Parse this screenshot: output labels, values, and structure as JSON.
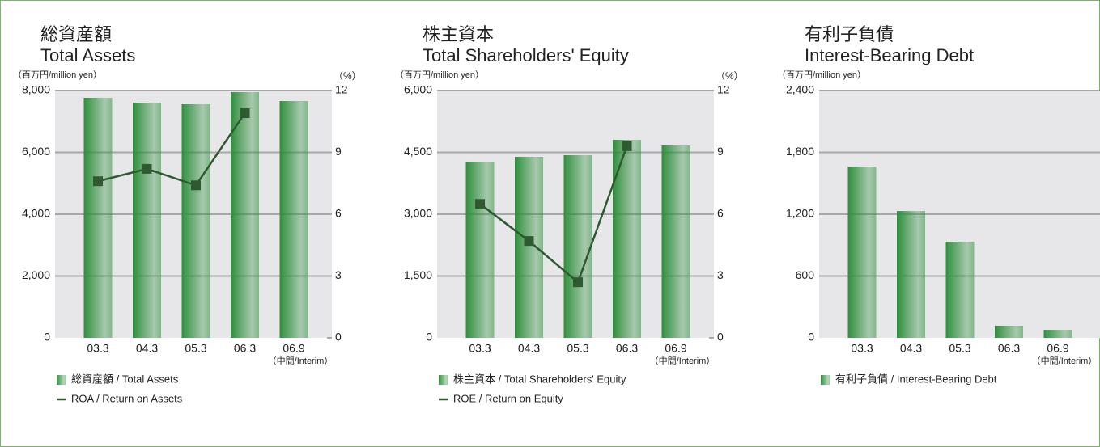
{
  "chart_data": [
    {
      "type": "bar",
      "title": "総資産額",
      "subtitle": "Total Assets",
      "y_unit_label": "（百万円/million yen）",
      "y2_unit_label": "（%）",
      "categories": [
        "03.3",
        "04.3",
        "05.3",
        "06.3",
        "06.9"
      ],
      "category_note": "（中間/Interim）",
      "series": [
        {
          "name": "総資産額 / Total Assets",
          "color": "#2f8f3c",
          "values": [
            7765,
            7608,
            7555,
            7948,
            7660
          ]
        },
        {
          "name": "ROA / Return on Assets",
          "color": "#2f5a2f",
          "axis": "y2",
          "type": "line",
          "values": [
            7.6,
            8.2,
            7.4,
            10.9,
            null
          ]
        }
      ],
      "ylim": [
        0,
        8000
      ],
      "yticks": [
        0,
        {
          "value": 2000,
          "label": "2,000"
        },
        {
          "value": 4000,
          "label": "4,000"
        },
        {
          "value": 6000,
          "label": "6,000"
        },
        {
          "value": 8000,
          "label": "8,000"
        }
      ],
      "y2lim": [
        0,
        12
      ],
      "y2ticks": [
        0,
        3,
        6,
        9,
        12
      ],
      "grid": true
    },
    {
      "type": "bar",
      "title": "株主資本",
      "subtitle": "Total Shareholders' Equity",
      "y_unit_label": "（百万円/million yen）",
      "y2_unit_label": "（%）",
      "categories": [
        "03.3",
        "04.3",
        "05.3",
        "06.3",
        "06.9"
      ],
      "category_note": "（中間/Interim）",
      "series": [
        {
          "name": "株主資本 / Total Shareholders' Equity",
          "color": "#2f8f3c",
          "values": [
            4275,
            4392,
            4431,
            4804,
            4667
          ]
        },
        {
          "name": "ROE / Return on Equity",
          "color": "#2f5a2f",
          "axis": "y2",
          "type": "line",
          "values": [
            6.5,
            4.7,
            2.7,
            9.3,
            null
          ]
        }
      ],
      "ylim": [
        0,
        6000
      ],
      "yticks": [
        0,
        {
          "value": 1500,
          "label": "1,500"
        },
        {
          "value": 3000,
          "label": "3,000"
        },
        {
          "value": 4500,
          "label": "4,500"
        },
        {
          "value": 6000,
          "label": "6,000"
        }
      ],
      "y2lim": [
        0,
        12
      ],
      "y2ticks": [
        0,
        3,
        6,
        9,
        12
      ],
      "grid": true
    },
    {
      "type": "bar",
      "title": "有利子負債",
      "subtitle": "Interest-Bearing Debt",
      "y_unit_label": "（百万円/million yen）",
      "categories": [
        "03.3",
        "04.3",
        "05.3",
        "06.3",
        "06.9"
      ],
      "category_note": "（中間/Interim）",
      "series": [
        {
          "name": "有利子負債 / Interest-Bearing Debt",
          "color": "#2f8f3c",
          "values": [
            1663,
            1231,
            933,
            118,
            78
          ]
        }
      ],
      "ylim": [
        0,
        2400
      ],
      "yticks": [
        0,
        600,
        {
          "value": 1200,
          "label": "1,200"
        },
        {
          "value": 1800,
          "label": "1,800"
        },
        {
          "value": 2400,
          "label": "2,400"
        }
      ],
      "grid": true
    }
  ]
}
